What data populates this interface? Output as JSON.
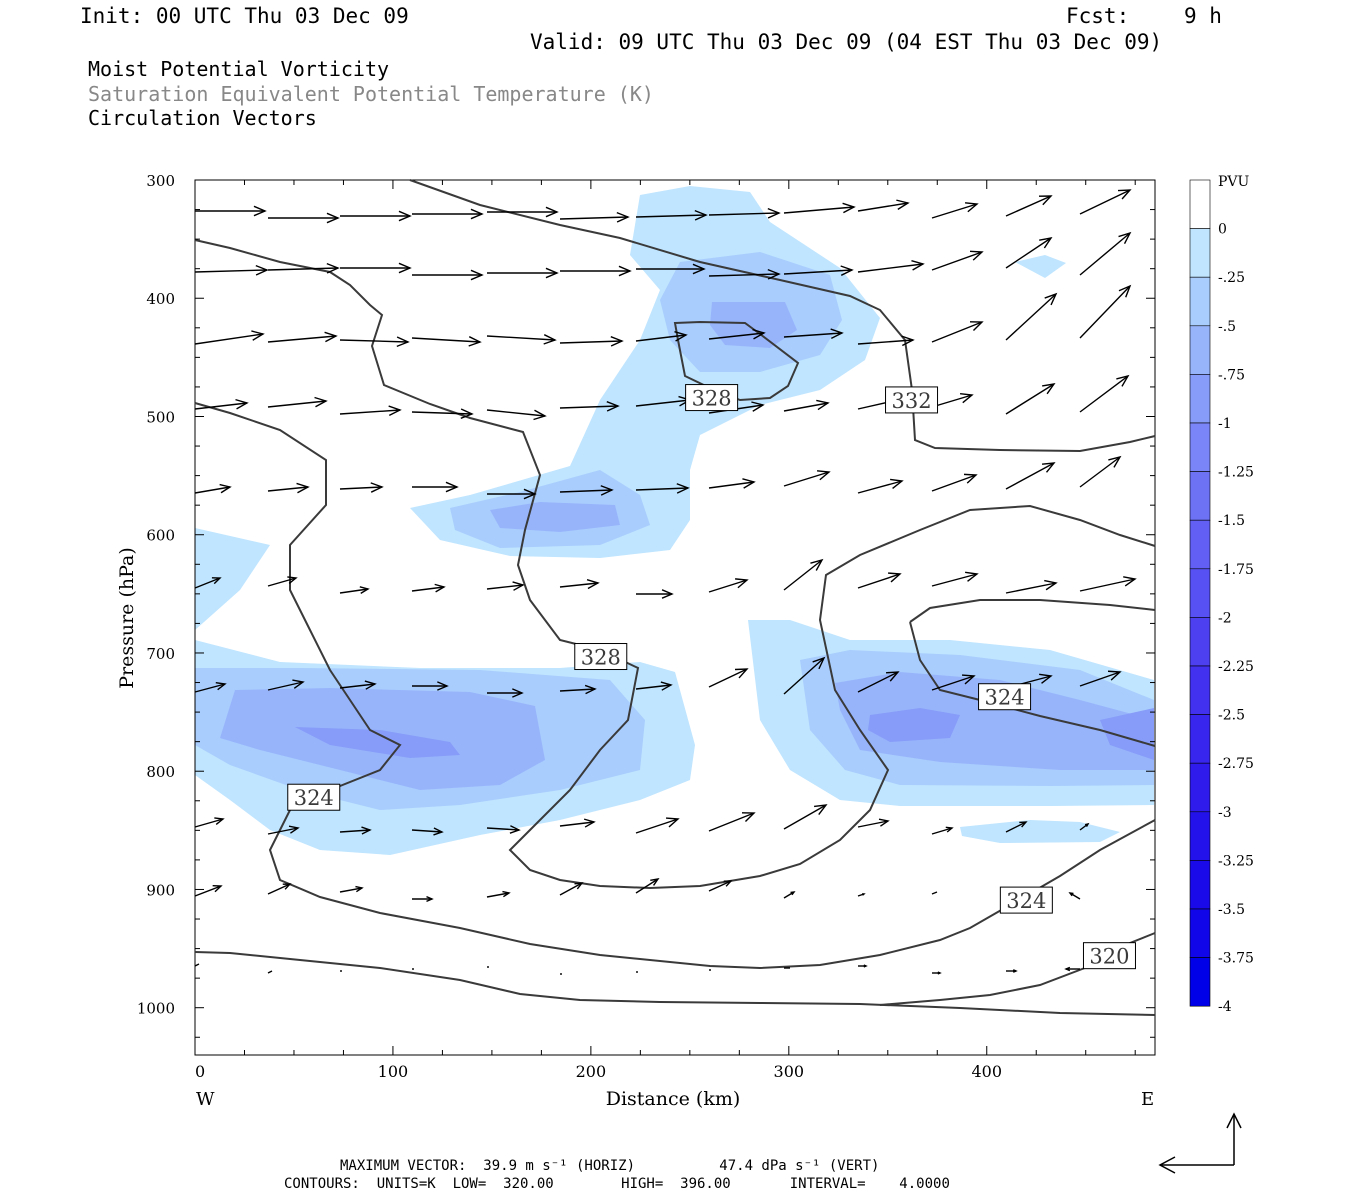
{
  "header": {
    "init": "Init: 00 UTC Thu 03 Dec 09",
    "fcst_label": "Fcst:",
    "fcst_value": "9 h",
    "valid": "Valid: 09 UTC Thu 03 Dec 09 (04 EST Thu 03 Dec 09)",
    "field1": "Moist Potential Vorticity",
    "field2": "Saturation Equivalent Potential Temperature (K)",
    "field3": "Circulation Vectors"
  },
  "footer": {
    "max_vector": "MAXIMUM VECTOR:  39.9 m s⁻¹ (HORIZ)          47.4 dPa s⁻¹ (VERT)",
    "contours": "CONTOURS:  UNITS=K  LOW=  320.00        HIGH=  396.00       INTERVAL=    4.0000"
  },
  "colors": {
    "fill_025": "#bfe5ff",
    "fill_05": "#a9cdfd",
    "fill_075": "#97b4fb",
    "fill_1": "#879cf8",
    "contour": "#3a3a3a"
  },
  "chart_data": {
    "type": "contour",
    "title": "Moist Potential Vorticity",
    "xlabel": "Distance (km)",
    "ylabel": "Pressure (hPa)",
    "xlim": [
      0,
      485
    ],
    "ylim": [
      1040,
      300
    ],
    "x_ticks": [
      "0",
      "100",
      "200",
      "300",
      "400"
    ],
    "x_tick_values": [
      0,
      100,
      200,
      300,
      400
    ],
    "y_ticks": [
      "300",
      "400",
      "500",
      "600",
      "700",
      "800",
      "900",
      "1000"
    ],
    "y_tick_values": [
      300,
      400,
      500,
      600,
      700,
      800,
      900,
      1000
    ],
    "west_label": "W",
    "east_label": "E",
    "colorbar": {
      "unit": "PVU",
      "labels": [
        "0",
        "-.25",
        "-.5",
        "-.75",
        "-1",
        "-1.25",
        "-1.5",
        "-1.75",
        "-2",
        "-2.25",
        "-2.5",
        "-2.75",
        "-3",
        "-3.25",
        "-3.5",
        "-3.75",
        "-4"
      ],
      "colors": [
        "#ffffff",
        "#bfe5ff",
        "#a9cdfd",
        "#97b4fb",
        "#879cf8",
        "#7a86f7",
        "#6d72f5",
        "#6260f4",
        "#5750f2",
        "#4c40f1",
        "#4232ef",
        "#3826ee",
        "#2e1bec",
        "#2412eb",
        "#1a0aea",
        "#1105e9",
        "#0000e8"
      ]
    },
    "contour_labels": [
      {
        "text": "328",
        "x": 261,
        "p": 484
      },
      {
        "text": "332",
        "x": 362,
        "p": 486
      },
      {
        "text": "328",
        "x": 205,
        "p": 703
      },
      {
        "text": "324",
        "x": 409,
        "p": 737
      },
      {
        "text": "324",
        "x": 60,
        "p": 822
      },
      {
        "text": "324",
        "x": 420,
        "p": 909
      },
      {
        "text": "320",
        "x": 462,
        "p": 956
      }
    ],
    "pv_fill_levels": [
      -0.25,
      -0.5,
      -0.75,
      -1
    ]
  }
}
